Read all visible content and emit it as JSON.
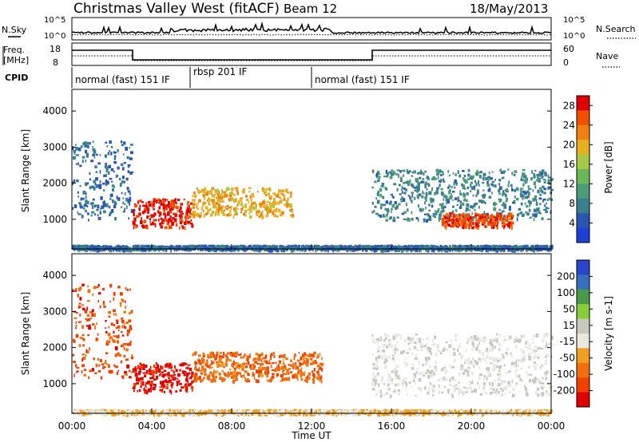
{
  "header": {
    "title": "Christmas Valley West (fitACF)",
    "beam": "Beam 12",
    "date": "18/May/2013"
  },
  "nsky_panel": {
    "label": "N.Sky",
    "right_label": "N.Search",
    "ticks_left": [
      "10^5",
      "10^0"
    ],
    "ticks_right": [
      "10^5",
      "10^0"
    ]
  },
  "freq_panel": {
    "label_line1": "Freq.",
    "label_line2": "[MHz]",
    "ticks_left": [
      "18",
      "8"
    ],
    "right_label": "Nave",
    "ticks_right": [
      "60",
      "0"
    ]
  },
  "cpid": {
    "label": "CPID",
    "segments": [
      {
        "label": "normal (fast) 151 IF",
        "start": "00:00",
        "end": "05:55"
      },
      {
        "label": "rbsp 201 IF",
        "start": "05:55",
        "end": "12:00"
      },
      {
        "label": "normal (fast) 151 IF",
        "start": "12:00",
        "end": "24:00"
      }
    ]
  },
  "colors": {
    "power_scale": [
      "#1f3fd6",
      "#2a55b0",
      "#3a7f8c",
      "#4f9a78",
      "#6ab85a",
      "#a8c846",
      "#e8b020",
      "#f08010",
      "#f05000",
      "#e00000"
    ],
    "velocity_scale": [
      "#2b46c8",
      "#3a6fbf",
      "#4a9a4a",
      "#8acd3a",
      "#c8c8c0",
      "#e8e8e0",
      "#f0a020",
      "#f07010",
      "#f04000",
      "#e00000"
    ]
  },
  "chart_data": [
    {
      "type": "heatmap",
      "name": "power",
      "ylabel": "Slant Range [km]",
      "yticks": [
        "1000",
        "2000",
        "3000",
        "4000"
      ],
      "colorbar_label": "Power [dB]",
      "colorbar_ticks": [
        "4",
        "8",
        "12",
        "16",
        "20",
        "24",
        "28"
      ],
      "ylim": [
        180,
        4600
      ],
      "features": [
        {
          "region": "E/low echoes band",
          "time": [
            "00:00",
            "24:00"
          ],
          "range_km": [
            180,
            300
          ],
          "value_dB": 6
        },
        {
          "region": "early scatter",
          "time": [
            "00:00",
            "03:00"
          ],
          "range_km": [
            1000,
            3200
          ],
          "value_dB": 6
        },
        {
          "region": "strong patch",
          "time": [
            "03:00",
            "06:00"
          ],
          "range_km": [
            800,
            1600
          ],
          "value_dB": 28
        },
        {
          "region": "mid patch",
          "time": [
            "06:00",
            "11:00"
          ],
          "range_km": [
            1100,
            1900
          ],
          "value_dB": 20
        },
        {
          "region": "afternoon arcs",
          "time": [
            "15:00",
            "24:00"
          ],
          "range_km": [
            1000,
            2400
          ],
          "value_dB": 8
        },
        {
          "region": "evening patch",
          "time": [
            "18:30",
            "22:00"
          ],
          "range_km": [
            800,
            1200
          ],
          "value_dB": 26
        }
      ]
    },
    {
      "type": "heatmap",
      "name": "velocity",
      "ylabel": "Slant Range [km]",
      "yticks": [
        "1000",
        "2000",
        "3000",
        "4000"
      ],
      "colorbar_label": "Velocity [m s-1]",
      "colorbar_ticks": [
        "200",
        "100",
        "50",
        "15",
        "-15",
        "-50",
        "-100",
        "-200"
      ],
      "ylim": [
        180,
        4600
      ],
      "xticks": [
        "00:00",
        "04:00",
        "08:00",
        "12:00",
        "16:00",
        "20:00",
        "00:00"
      ],
      "xlabel": "Time UT",
      "features": [
        {
          "region": "ground scatter band",
          "time": [
            "00:00",
            "24:00"
          ],
          "range_km": [
            180,
            300
          ],
          "value_ms": -40
        },
        {
          "region": "early patch",
          "time": [
            "00:00",
            "03:00"
          ],
          "range_km": [
            1200,
            3800
          ],
          "value_ms": -150
        },
        {
          "region": "strong patch",
          "time": [
            "03:00",
            "06:00"
          ],
          "range_km": [
            800,
            1600
          ],
          "value_ms": -200
        },
        {
          "region": "mid patch",
          "time": [
            "06:00",
            "12:30"
          ],
          "range_km": [
            1100,
            1900
          ],
          "value_ms": -120
        },
        {
          "region": "afternoon ground scatter",
          "time": [
            "15:00",
            "24:00"
          ],
          "range_km": [
            700,
            2400
          ],
          "value_ms": 0
        }
      ]
    }
  ]
}
